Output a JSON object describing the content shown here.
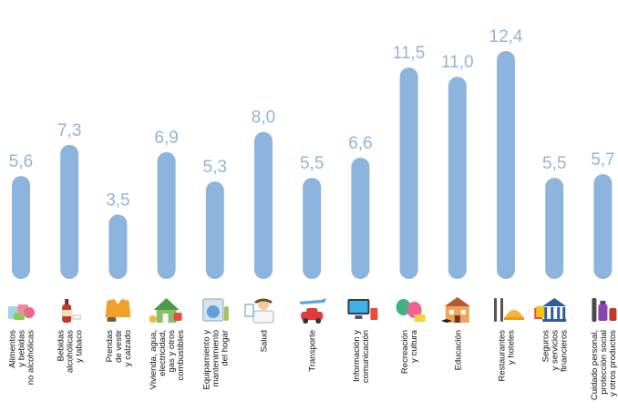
{
  "colors": {
    "bar": "#8db4dc",
    "value_text": "#93b4d6",
    "label_text": "#111111"
  },
  "chart_data": {
    "type": "bar",
    "title": "",
    "xlabel": "",
    "ylabel": "",
    "ylim": [
      0,
      12.4
    ],
    "grid": false,
    "value_format": "decimal-comma",
    "categories": [
      [
        "Alimentos",
        "y bebidas",
        "no alcohólicas"
      ],
      [
        "Bebidas",
        "alcohólicas",
        "y tabaco"
      ],
      [
        "Prendas",
        "de vestir",
        "y calzado"
      ],
      [
        "Vivienda, agua,",
        "electricidad,",
        "gas y otros",
        "combustibles"
      ],
      [
        "Equipamiento y",
        "mantenimiento",
        "del hogar"
      ],
      [
        "Salud"
      ],
      [
        "Transporte"
      ],
      [
        "Información y",
        "comunicación"
      ],
      [
        "Recreación",
        "y cultura"
      ],
      [
        "Educación"
      ],
      [
        "Restaurantes",
        "y hoteles"
      ],
      [
        "Seguros",
        "y servicios",
        "financieros"
      ],
      [
        "Cuidado personal,",
        "protección social",
        "y otros productos"
      ]
    ],
    "values": [
      5.6,
      7.3,
      3.5,
      6.9,
      5.3,
      8.0,
      5.5,
      6.6,
      11.5,
      11.0,
      12.4,
      5.5,
      5.7
    ],
    "value_labels": [
      "5,6",
      "7,3",
      "3,5",
      "6,9",
      "5,3",
      "8,0",
      "5,5",
      "6,6",
      "11,5",
      "11,0",
      "12,4",
      "5,5",
      "5,7"
    ],
    "icons": [
      "food-icon",
      "wine-bottle-icon",
      "jacket-icon",
      "house-icon",
      "washing-machine-icon",
      "doctor-icon",
      "car-plane-icon",
      "computer-icon",
      "theatre-masks-icon",
      "school-building-icon",
      "cutlery-icon",
      "bank-icon",
      "personal-care-icon"
    ]
  }
}
